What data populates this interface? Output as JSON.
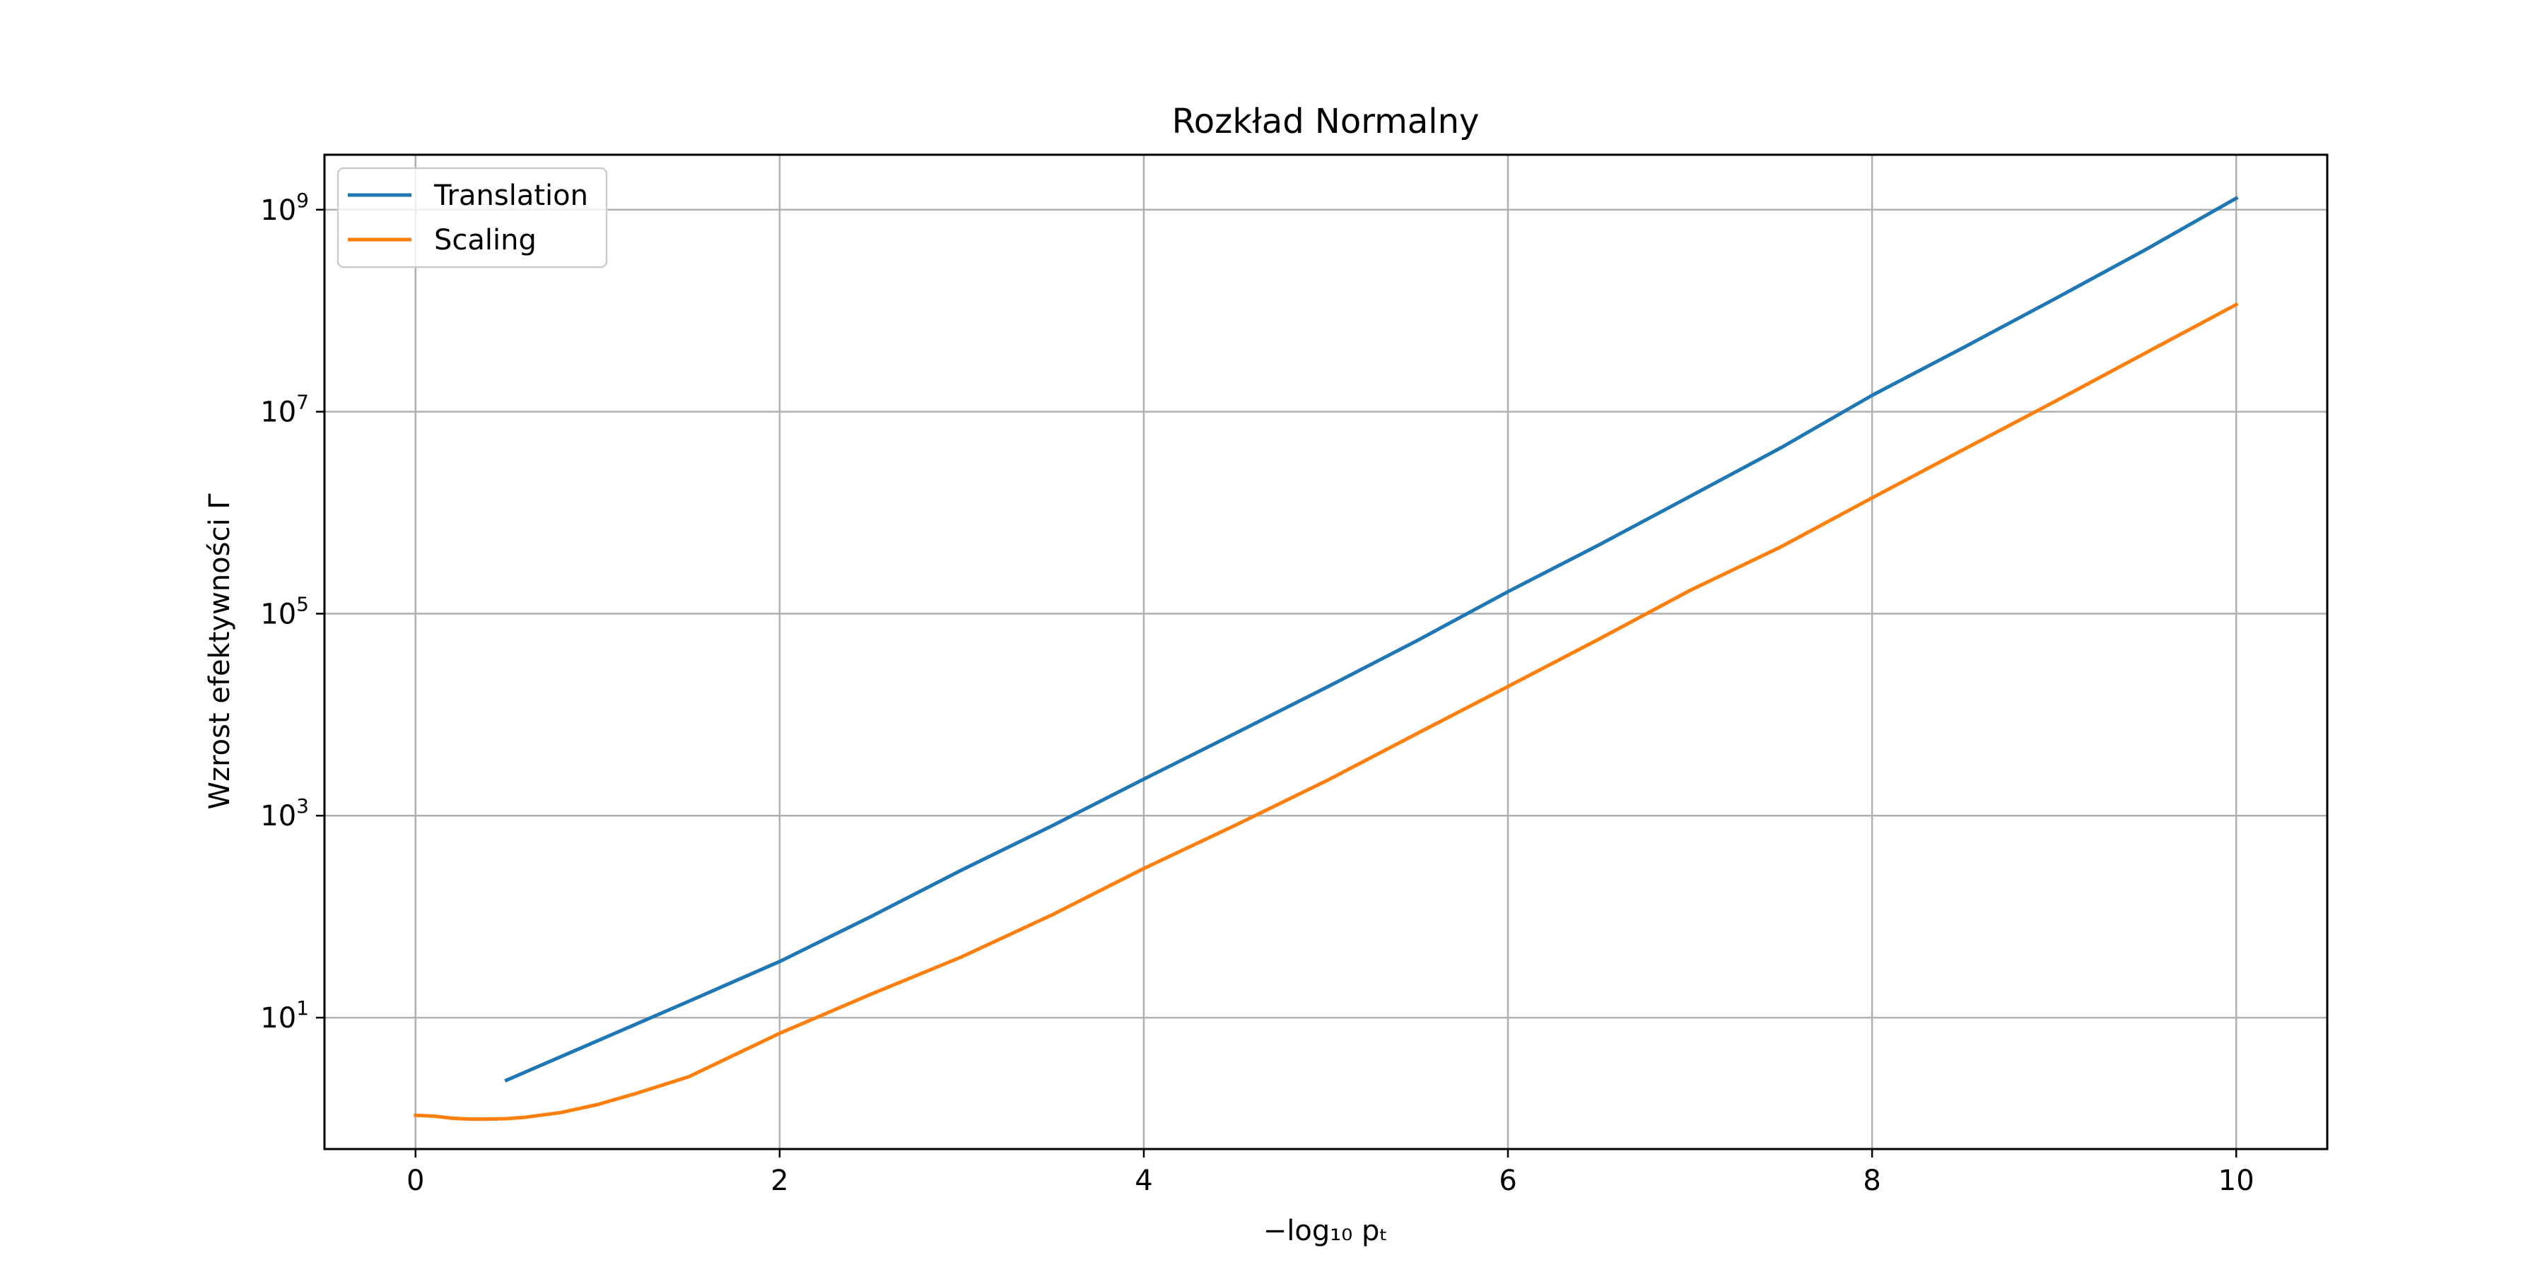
{
  "chart_data": {
    "type": "line",
    "title": "Rozkład Normalny",
    "xlabel": "−log₁₀ pₜ",
    "ylabel": "Wzrost efektywności Γ",
    "xlim": [
      -0.5,
      10.5
    ],
    "ylim": [
      0.5,
      3500000000
    ],
    "yscale": "log",
    "grid": true,
    "legend_position": "top-left",
    "x_ticks": [
      0,
      2,
      4,
      6,
      8,
      10
    ],
    "y_ticks": [
      {
        "value": 10,
        "base": "10",
        "exp": "1"
      },
      {
        "value": 1000,
        "base": "10",
        "exp": "3"
      },
      {
        "value": 100000,
        "base": "10",
        "exp": "5"
      },
      {
        "value": 10000000,
        "base": "10",
        "exp": "7"
      },
      {
        "value": 1000000000,
        "base": "10",
        "exp": "9"
      }
    ],
    "series": [
      {
        "name": "Translation",
        "color": "#1f77b4",
        "x": [
          0.5,
          1.0,
          1.5,
          2.0,
          2.5,
          3.0,
          3.5,
          4.0,
          4.5,
          5.0,
          5.5,
          6.0,
          6.5,
          7.0,
          7.5,
          8.0,
          8.5,
          9.0,
          9.5,
          10.0
        ],
        "y": [
          2.4,
          5.9,
          14.5,
          36,
          100,
          290,
          800,
          2300,
          6500,
          18500,
          54000,
          165000,
          480000,
          1450000,
          4400000,
          14500000,
          43000000,
          130000000,
          400000000,
          1300000000
        ]
      },
      {
        "name": "Scaling",
        "color": "#ff7f0e",
        "x": [
          0,
          0.1,
          0.2,
          0.3,
          0.4,
          0.5,
          0.6,
          0.8,
          1.0,
          1.2,
          1.5,
          2.0,
          2.5,
          3.0,
          3.5,
          4.0,
          4.5,
          5.0,
          5.5,
          6.0,
          6.5,
          7.0,
          7.5,
          8.0,
          8.5,
          9.0,
          9.5,
          10.0
        ],
        "y": [
          1.08,
          1.06,
          1.01,
          0.99,
          0.99,
          1.0,
          1.03,
          1.15,
          1.38,
          1.75,
          2.6,
          7,
          17,
          40,
          105,
          300,
          800,
          2200,
          6500,
          19000,
          56000,
          170000,
          460000,
          1400000,
          4200000,
          12500000,
          38000000,
          115000000
        ]
      }
    ]
  }
}
